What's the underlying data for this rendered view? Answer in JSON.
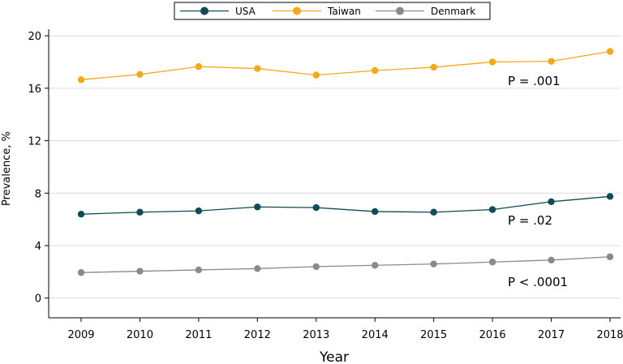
{
  "chart_data": {
    "type": "line",
    "title": "",
    "xlabel": "Year",
    "ylabel": "Prevalence, %",
    "x": [
      2009,
      2010,
      2011,
      2012,
      2013,
      2014,
      2015,
      2016,
      2017,
      2018
    ],
    "x_ticks": [
      "2009",
      "2010",
      "2011",
      "2012",
      "2013",
      "2014",
      "2015",
      "2016",
      "2017",
      "2018"
    ],
    "y_ticks": [
      "0",
      "4",
      "8",
      "12",
      "16",
      "20"
    ],
    "ylim": [
      -1.5,
      20.5
    ],
    "grid": "horizontal",
    "legend_position": "top",
    "series": [
      {
        "name": "USA",
        "color": "#0e4d55",
        "values": [
          6.4,
          6.55,
          6.65,
          6.95,
          6.9,
          6.6,
          6.55,
          6.75,
          7.35,
          7.75
        ]
      },
      {
        "name": "Taiwan",
        "color": "#f5a81c",
        "values": [
          16.65,
          17.05,
          17.65,
          17.5,
          17.0,
          17.35,
          17.6,
          18.0,
          18.05,
          18.8
        ]
      },
      {
        "name": "Denmark",
        "color": "#8a8a8a",
        "values": [
          1.95,
          2.05,
          2.15,
          2.25,
          2.4,
          2.5,
          2.6,
          2.75,
          2.9,
          3.15
        ]
      }
    ],
    "annotations": [
      {
        "text": "P = .001",
        "series": "Taiwan"
      },
      {
        "text": "P = .02",
        "series": "USA"
      },
      {
        "text": "P < .0001",
        "series": "Denmark"
      }
    ]
  }
}
